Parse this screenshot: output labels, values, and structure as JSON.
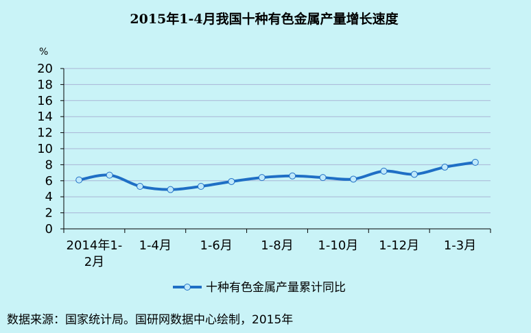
{
  "chart_data": {
    "type": "line",
    "title": "2015年1-4月我国十种有色金属产量增长速度",
    "yunit": "%",
    "ylim": [
      0,
      20
    ],
    "yticks": [
      0,
      2,
      4,
      6,
      8,
      10,
      12,
      14,
      16,
      18,
      20
    ],
    "x": [
      "2014年1-2月",
      "",
      "1-4月",
      "",
      "1-6月",
      "",
      "1-8月",
      "",
      "1-10月",
      "",
      "1-12月",
      "",
      "1-3月",
      ""
    ],
    "xtick_labels": [
      [
        "2014年1-",
        "2月"
      ],
      [
        "1-4月"
      ],
      [
        "1-6月"
      ],
      [
        "1-8月"
      ],
      [
        "1-10月"
      ],
      [
        "1-12月"
      ],
      [
        "1-3月"
      ]
    ],
    "series": [
      {
        "name": "十种有色金属产量累计同比",
        "color": "#1f6fc5",
        "values": [
          6.1,
          6.7,
          5.3,
          4.9,
          5.3,
          5.9,
          6.4,
          6.6,
          6.4,
          6.2,
          7.2,
          6.8,
          7.7,
          8.3
        ]
      }
    ],
    "grid": true,
    "legend": "bottom-center"
  },
  "source": "数据来源：国家统计局。国研网数据中心绘制，2015年"
}
